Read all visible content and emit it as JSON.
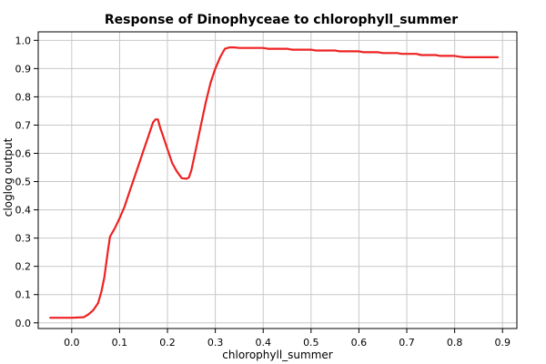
{
  "chart_data": {
    "type": "line",
    "title": "Response of Dinophyceae to chlorophyll_summer",
    "xlabel": "chlorophyll_summer",
    "ylabel": "cloglog output",
    "xlim": [
      -0.07,
      0.93
    ],
    "ylim": [
      -0.02,
      1.03
    ],
    "xticks": [
      "0.0",
      "0.1",
      "0.2",
      "0.3",
      "0.4",
      "0.5",
      "0.6",
      "0.7",
      "0.8",
      "0.9"
    ],
    "yticks": [
      "0.0",
      "0.1",
      "0.2",
      "0.3",
      "0.4",
      "0.5",
      "0.6",
      "0.7",
      "0.8",
      "0.9",
      "1.0"
    ],
    "xtick_values": [
      0.0,
      0.1,
      0.2,
      0.3,
      0.4,
      0.5,
      0.6,
      0.7,
      0.8,
      0.9
    ],
    "ytick_values": [
      0.0,
      0.1,
      0.2,
      0.3,
      0.4,
      0.5,
      0.6,
      0.7,
      0.8,
      0.9,
      1.0
    ],
    "grid": true,
    "series": [
      {
        "color": "#ee2222",
        "x": [
          -0.045,
          0.0,
          0.025,
          0.035,
          0.045,
          0.055,
          0.062,
          0.068,
          0.072,
          0.076,
          0.08,
          0.085,
          0.09,
          0.1,
          0.11,
          0.12,
          0.13,
          0.14,
          0.15,
          0.16,
          0.17,
          0.175,
          0.18,
          0.185,
          0.19,
          0.2,
          0.21,
          0.22,
          0.23,
          0.24,
          0.245,
          0.25,
          0.26,
          0.27,
          0.28,
          0.29,
          0.3,
          0.31,
          0.32,
          0.33,
          0.34,
          0.35,
          0.36,
          0.4,
          0.41,
          0.45,
          0.46,
          0.5,
          0.51,
          0.55,
          0.56,
          0.6,
          0.61,
          0.64,
          0.65,
          0.68,
          0.69,
          0.72,
          0.73,
          0.76,
          0.77,
          0.8,
          0.81,
          0.82,
          0.89
        ],
        "y": [
          0.018,
          0.018,
          0.02,
          0.03,
          0.045,
          0.07,
          0.11,
          0.16,
          0.21,
          0.26,
          0.305,
          0.32,
          0.335,
          0.37,
          0.41,
          0.46,
          0.51,
          0.56,
          0.61,
          0.66,
          0.71,
          0.72,
          0.72,
          0.69,
          0.665,
          0.615,
          0.565,
          0.535,
          0.512,
          0.51,
          0.515,
          0.54,
          0.62,
          0.7,
          0.78,
          0.85,
          0.9,
          0.94,
          0.97,
          0.975,
          0.975,
          0.973,
          0.973,
          0.973,
          0.97,
          0.97,
          0.967,
          0.967,
          0.964,
          0.964,
          0.961,
          0.961,
          0.958,
          0.958,
          0.955,
          0.955,
          0.952,
          0.952,
          0.948,
          0.948,
          0.945,
          0.945,
          0.942,
          0.94,
          0.94
        ]
      }
    ]
  }
}
